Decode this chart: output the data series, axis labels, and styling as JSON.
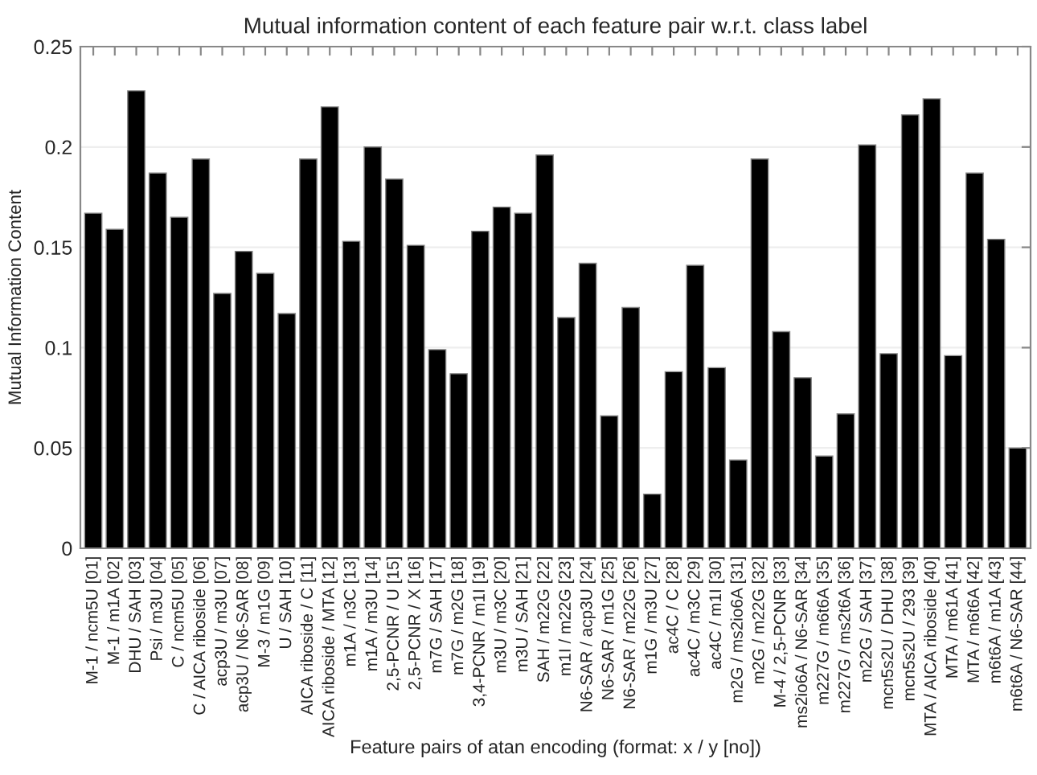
{
  "chart_data": {
    "type": "bar",
    "title": "Mutual information content of each feature pair w.r.t. class label",
    "xlabel": "Feature pairs of atan encoding (format: x / y [no])",
    "ylabel": "Mutual Information Content",
    "categories": [
      "M-1 / ncm5U [01]",
      "M-1 / m1A [02]",
      "DHU / SAH [03]",
      "Psi / m3U [04]",
      "C / ncm5U [05]",
      "C / AICA riboside [06]",
      "acp3U / m3U [07]",
      "acp3U / N6-SAR [08]",
      "M-3 / m1G [09]",
      "U / SAH [10]",
      "AICA riboside / C [11]",
      "AICA riboside / MTA [12]",
      "m1A / n3C [13]",
      "m1A / m3U [14]",
      "2,5-PCNR / U [15]",
      "2,5-PCNR / X [16]",
      "m7G / SAH [17]",
      "m7G / m2G [18]",
      "3,4-PCNR / m1I [19]",
      "m3U / m3C [20]",
      "m3U / SAH [21]",
      "SAH / m22G [22]",
      "m1I / m22G [23]",
      "N6-SAR / acp3U [24]",
      "N6-SAR / m1G [25]",
      "N6-SAR / m22G [26]",
      "m1G / m3U [27]",
      "ac4C / C [28]",
      "ac4C / m3C [29]",
      "ac4C / m1I [30]",
      "m2G / ms2io6A [31]",
      "m2G / m22G [32]",
      "M-4 / 2,5-PCNR [33]",
      "ms2io6A / N6-SAR [34]",
      "m227G / m6t6A [35]",
      "m227G / ms2t6A [36]",
      "m22G / SAH [37]",
      "mcn5s2U / DHU [38]",
      "mcn5s2U / 293 [39]",
      "MTA / AICA riboside [40]",
      "MTA / m61A [41]",
      "MTA / m6t6A [42]",
      "m6t6A / m1A [43]",
      "m6t6A / N6-SAR [44]"
    ],
    "values": [
      0.167,
      0.159,
      0.228,
      0.187,
      0.165,
      0.194,
      0.127,
      0.148,
      0.137,
      0.117,
      0.194,
      0.22,
      0.153,
      0.2,
      0.184,
      0.151,
      0.099,
      0.087,
      0.158,
      0.17,
      0.167,
      0.196,
      0.115,
      0.142,
      0.066,
      0.12,
      0.027,
      0.088,
      0.141,
      0.09,
      0.044,
      0.194,
      0.108,
      0.085,
      0.046,
      0.067,
      0.201,
      0.097,
      0.216,
      0.224,
      0.096,
      0.187,
      0.154,
      0.05
    ],
    "color": "#000000",
    "ylim": [
      0,
      0.25
    ],
    "yticks": [
      0,
      0.05,
      0.1,
      0.15,
      0.2,
      0.25
    ],
    "grid": "y"
  }
}
